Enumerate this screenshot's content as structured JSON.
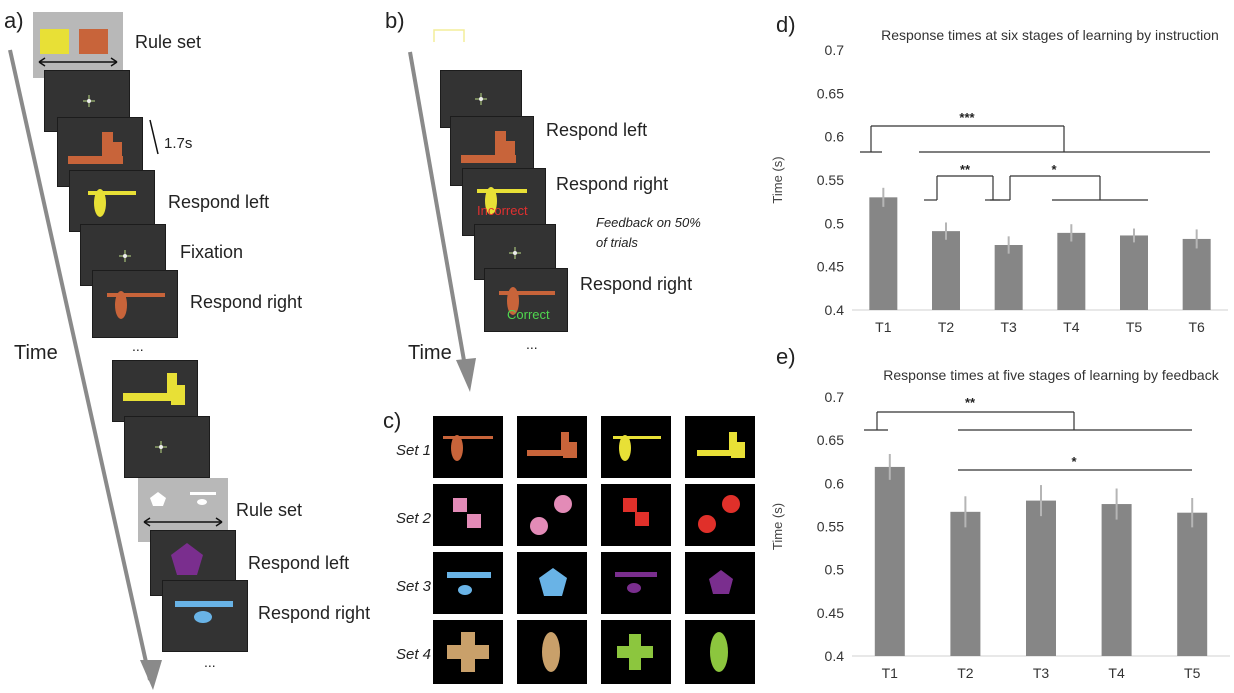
{
  "panel_a": {
    "letter": "a)",
    "rule_set_label": "Rule set",
    "timing_label": "1.7s",
    "respond_left": "Respond left",
    "fixation": "Fixation",
    "respond_right": "Respond right",
    "ellipsis": "...",
    "time_label": "Time",
    "rule_set_label_2": "Rule set",
    "respond_left_2": "Respond left",
    "respond_right_2": "Respond right",
    "ellipsis_2": "..."
  },
  "panel_b": {
    "letter": "b)",
    "respond_left": "Respond left",
    "respond_right": "Respond right",
    "incorrect": "Incorrect",
    "feedback_note_1": "Feedback on 50%",
    "feedback_note_2": "of trials",
    "respond_right_2": "Respond right",
    "correct": "Correct",
    "time_label": "Time",
    "ellipsis": "..."
  },
  "panel_c": {
    "letter": "c)",
    "set_labels": [
      "Set 1",
      "Set 2",
      "Set 3",
      "Set 4"
    ]
  },
  "colors": {
    "bar": "#868686",
    "rule_yellow": "#e8e036",
    "rule_orange": "#c8643a",
    "incorrect_text": "#e03030",
    "correct_text": "#4fd64f"
  },
  "chart_data": [
    {
      "panel": "d)",
      "type": "bar",
      "title": "Response times at six stages of learning by instruction",
      "ylabel": "Time (s)",
      "categories": [
        "T1",
        "T2",
        "T3",
        "T4",
        "T5",
        "T6"
      ],
      "values": [
        0.53,
        0.491,
        0.475,
        0.489,
        0.486,
        0.482
      ],
      "errors": [
        0.011,
        0.01,
        0.01,
        0.01,
        0.008,
        0.011
      ],
      "ylim": [
        0.4,
        0.7
      ],
      "yticks": [
        "0.4",
        "0.45",
        "0.5",
        "0.55",
        "0.6",
        "0.65",
        "0.7"
      ],
      "significance": [
        {
          "label": "***",
          "between": [
            "T1",
            "T2-T6"
          ]
        },
        {
          "label": "**",
          "between": [
            "T2",
            "T3"
          ]
        },
        {
          "label": "*",
          "between": [
            "T3",
            "T4-T6"
          ]
        }
      ]
    },
    {
      "panel": "e)",
      "type": "bar",
      "title": "Response times at five stages of learning by feedback",
      "ylabel": "Time (s)",
      "categories": [
        "T1",
        "T2",
        "T3",
        "T4",
        "T5"
      ],
      "values": [
        0.619,
        0.567,
        0.58,
        0.576,
        0.566
      ],
      "errors": [
        0.015,
        0.018,
        0.018,
        0.018,
        0.017
      ],
      "ylim": [
        0.4,
        0.7
      ],
      "yticks": [
        "0.4",
        "0.45",
        "0.5",
        "0.55",
        "0.6",
        "0.65",
        "0.7"
      ],
      "significance": [
        {
          "label": "**",
          "between": [
            "T1",
            "T2-T5"
          ]
        },
        {
          "label": "*",
          "between": [
            "T2",
            "T5"
          ]
        }
      ]
    }
  ]
}
